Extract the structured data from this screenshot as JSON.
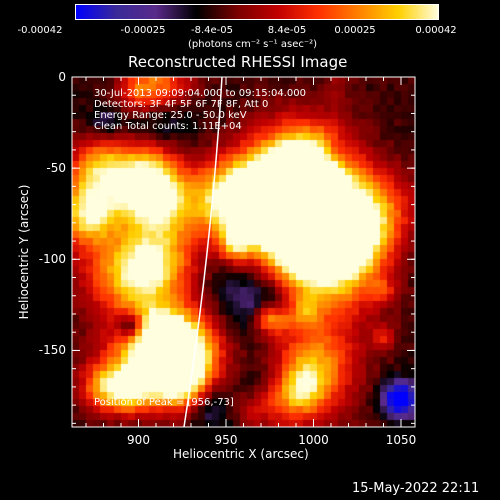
{
  "colors": {
    "background": "#000000",
    "foreground": "#ffffff",
    "limb": "#ffffff",
    "colormap": [
      "#0000ff",
      "#3a2a9a",
      "#5a2a8a",
      "#000000",
      "#7a0000",
      "#c00000",
      "#ff3000",
      "#ff8000",
      "#ffd000",
      "#ffffe0"
    ]
  },
  "colorbar": {
    "ticks": [
      "-0.00042",
      "-0.00025",
      "-8.4e-05",
      "8.4e-05",
      "0.00025",
      "0.00042"
    ],
    "units": "(photons cm⁻² s⁻¹ asec⁻²)"
  },
  "plot": {
    "title": "Reconstructed RHESSI Image",
    "xlabel": "Heliocentric X (arcsec)",
    "ylabel": "Heliocentric Y (arcsec)",
    "x_ticks": [
      "900",
      "950",
      "1000",
      "1050"
    ],
    "y_ticks": [
      "0",
      "-50",
      "-100",
      "-150"
    ],
    "xlim": [
      862,
      1058
    ],
    "ylim": [
      -192,
      0
    ]
  },
  "info": {
    "line1": "30-Jul-2013 09:09:04.000 to 09:15:04.000",
    "line2": "Detectors: 3F 4F 5F 6F 7F 8F, Att 0",
    "line3": "Energy Range: 25.0 - 50.0 keV",
    "line4": "Clean    Total counts: 1.11E+04"
  },
  "peak": {
    "text": "Position of Peak = [956,-73]"
  },
  "footer": {
    "date": "15-May-2022 22:11"
  }
}
